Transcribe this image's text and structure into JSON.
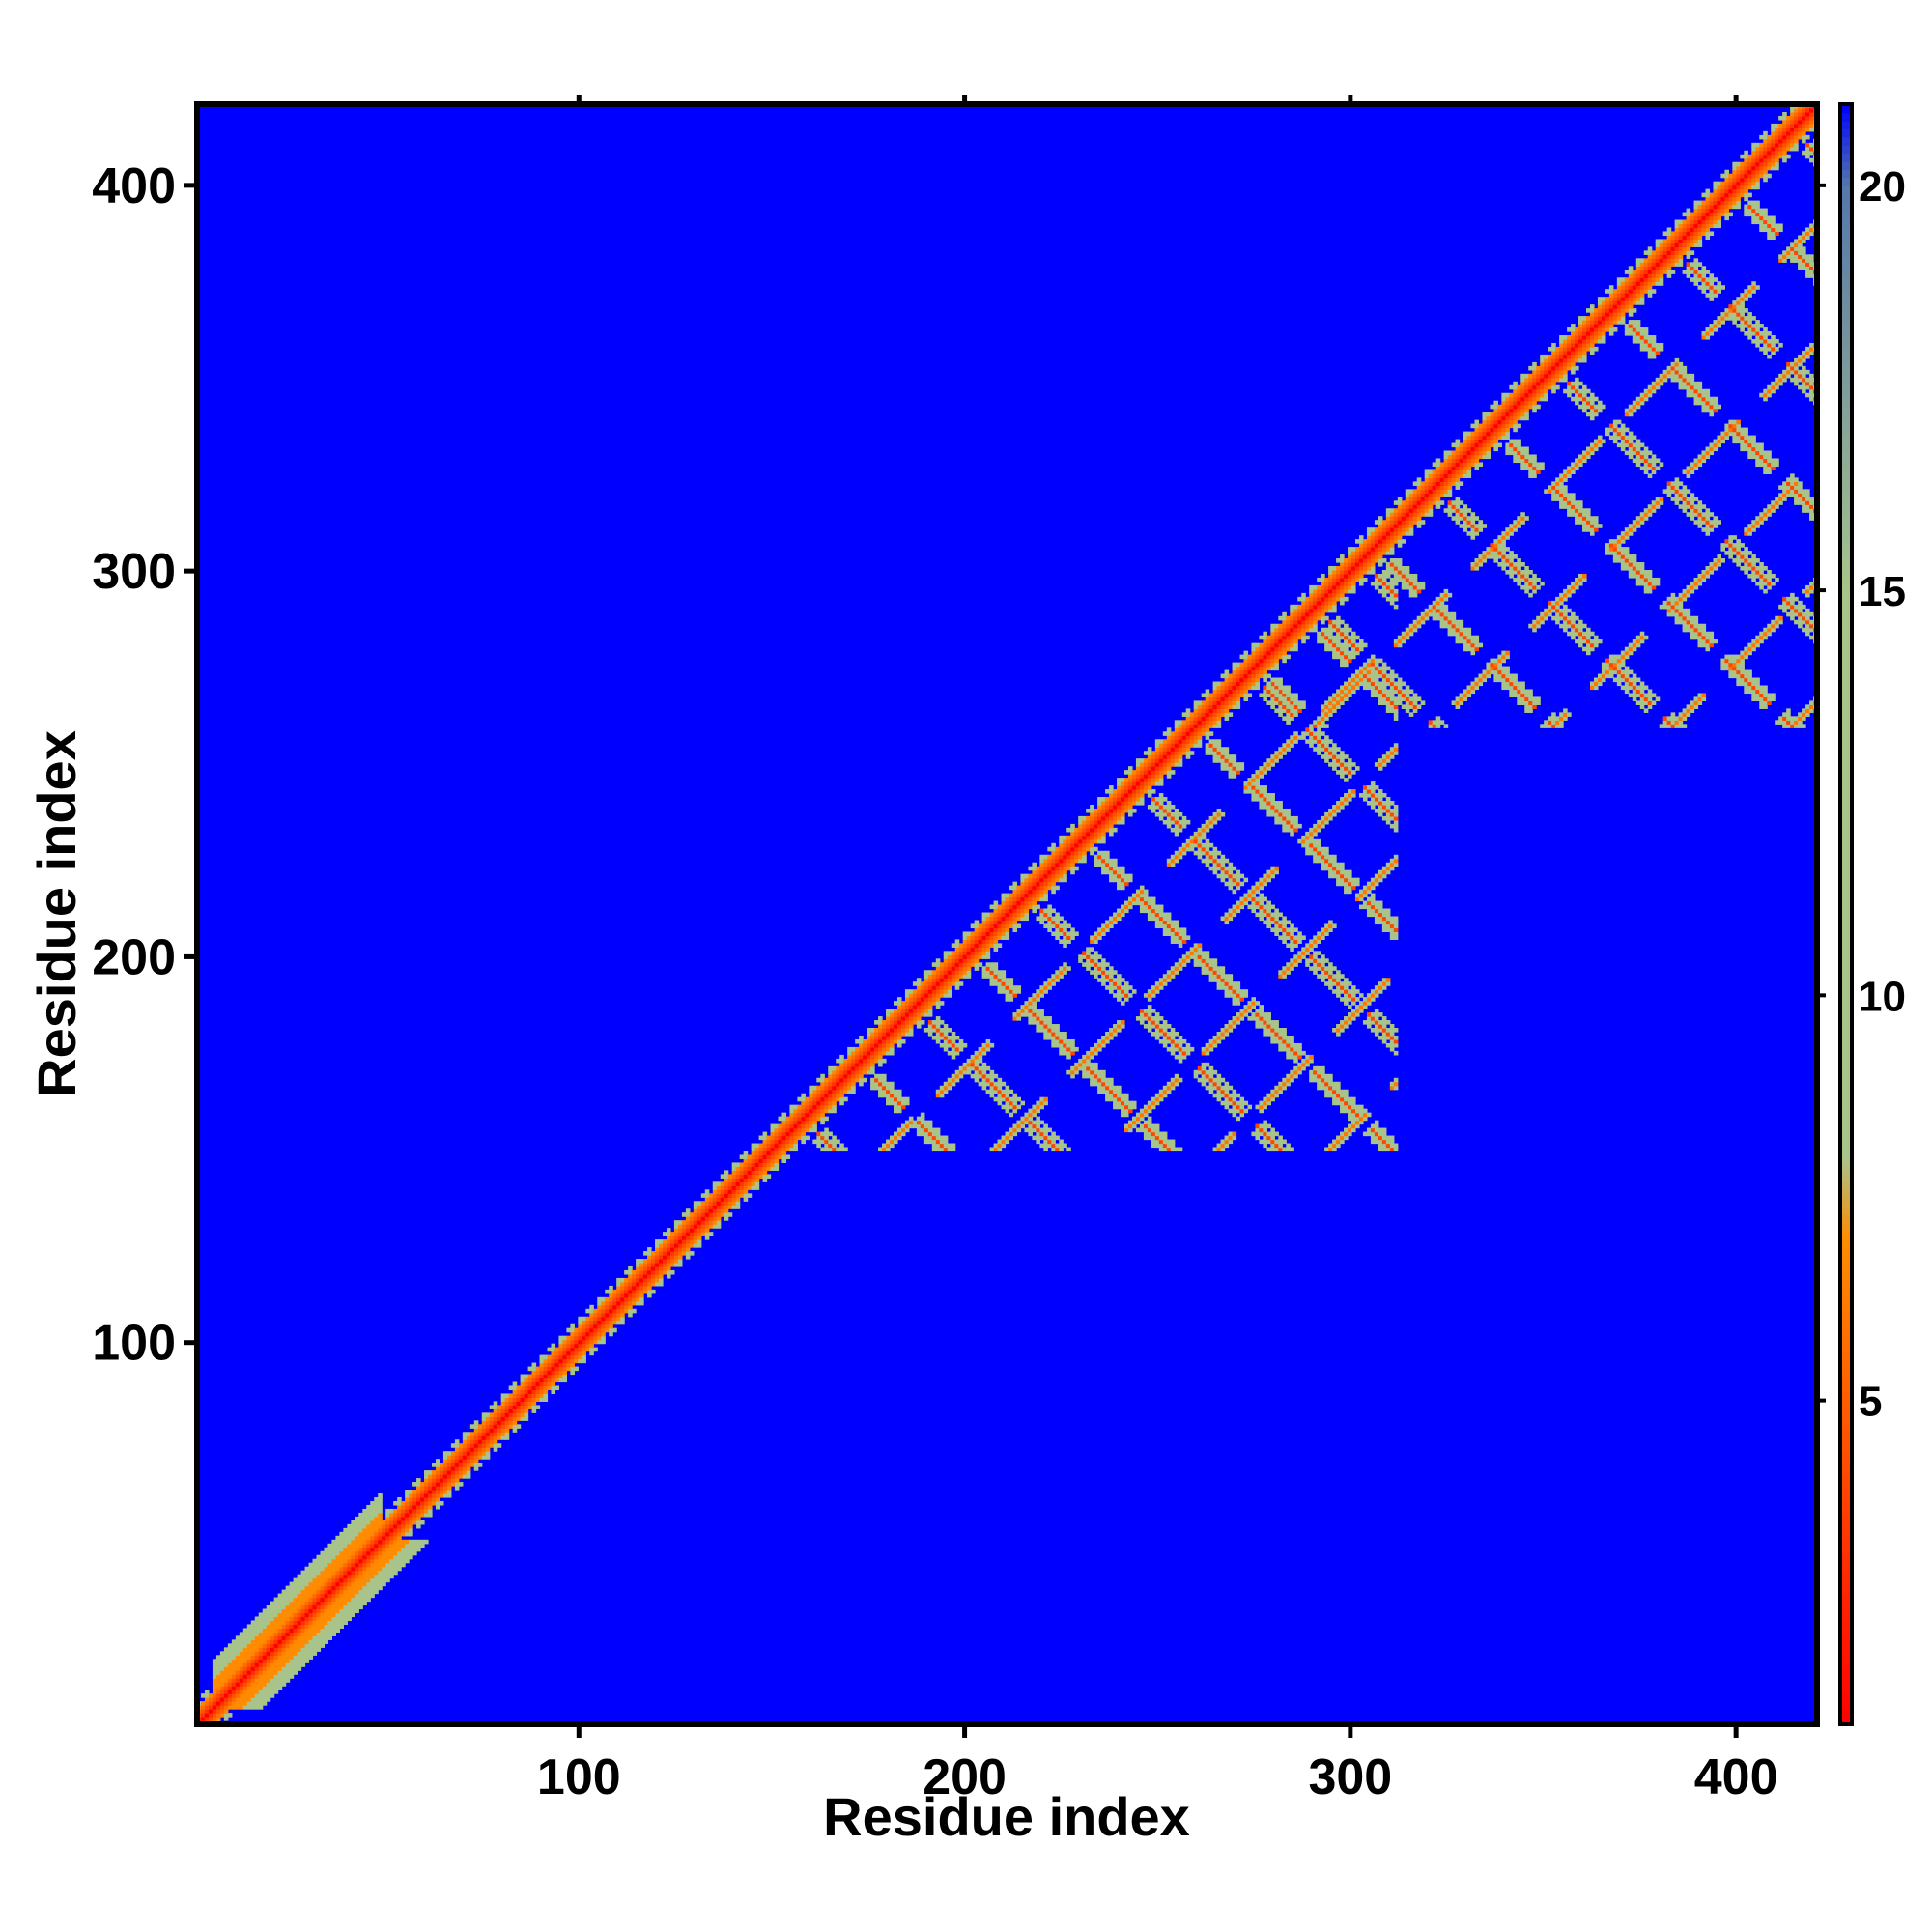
{
  "chart_data": {
    "type": "heatmap",
    "title": "",
    "xlabel": "Residue index",
    "ylabel": "Residue index",
    "xlim": [
      1,
      421
    ],
    "ylim": [
      1,
      421
    ],
    "xticks": [
      100,
      200,
      300,
      400
    ],
    "yticks": [
      100,
      200,
      300,
      400
    ],
    "background_value": 21,
    "colorbar": {
      "range": [
        1,
        21
      ],
      "ticks": [
        5,
        10,
        15,
        20
      ],
      "colors": {
        "low": "#ff0000",
        "mid_low": "#ff8c00",
        "mid": "#a8c48a",
        "high": "#5577aa",
        "max": "#0000ff"
      }
    },
    "features": {
      "diagonal": {
        "from": 1,
        "to": 421,
        "value": 3
      },
      "early_band": {
        "from": 5,
        "to": 48,
        "value": 9
      },
      "domain_1": {
        "from": 150,
        "to": 312,
        "type": "beta-sheet contacts"
      },
      "domain_2": {
        "from": 260,
        "to": 421,
        "type": "beta-sheet contacts"
      }
    }
  }
}
